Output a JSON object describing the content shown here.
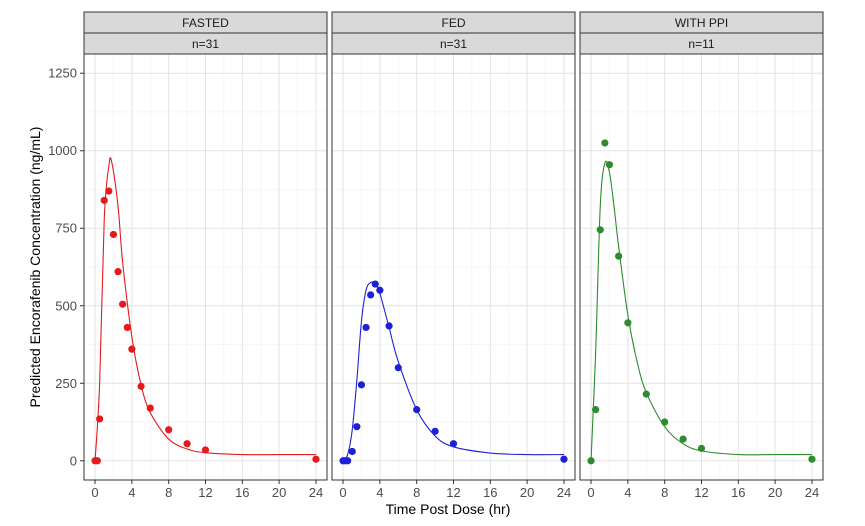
{
  "chart_data": {
    "type": "scatter",
    "xlabel": "Time Post Dose (hr)",
    "ylabel": "Predicted Encorafenib Concentration (ng/mL)",
    "xlim": [
      -1.2,
      25.2
    ],
    "ylim": [
      -62,
      1312
    ],
    "x_ticks": [
      0,
      4,
      8,
      12,
      16,
      20,
      24
    ],
    "y_ticks": [
      0,
      250,
      500,
      750,
      1000,
      1250
    ],
    "x_tick_labels": [
      "0",
      "4",
      "8",
      "12",
      "16",
      "20",
      "24"
    ],
    "y_tick_labels": [
      "0",
      "250",
      "500",
      "750",
      "1000",
      "1250"
    ],
    "grid": true,
    "panels": [
      {
        "strip_top": "FASTED",
        "strip_bottom": "n=31",
        "color": "#e41a1c",
        "observed": {
          "x": [
            0,
            0.25,
            0.5,
            1,
            1.5,
            2,
            2.5,
            3,
            3.5,
            4,
            5,
            6,
            8,
            10,
            12,
            24
          ],
          "y": [
            0,
            0,
            135,
            840,
            870,
            730,
            610,
            505,
            430,
            360,
            240,
            170,
            100,
            55,
            35,
            5
          ]
        },
        "fitted": {
          "x": [
            0,
            0.5,
            1,
            1.5,
            1.8,
            2.5,
            3,
            4,
            5,
            6,
            8,
            10,
            12,
            16,
            20,
            24
          ],
          "y": [
            0,
            250,
            780,
            950,
            965,
            820,
            640,
            400,
            245,
            155,
            70,
            38,
            26,
            20,
            20,
            20
          ]
        }
      },
      {
        "strip_top": "FED",
        "strip_bottom": "n=31",
        "color": "#1f1fd6",
        "observed": {
          "x": [
            0,
            0.25,
            0.5,
            1,
            1.5,
            2,
            2.5,
            3,
            3.5,
            4,
            5,
            6,
            8,
            10,
            12,
            24
          ],
          "y": [
            0,
            0,
            0,
            30,
            110,
            245,
            430,
            535,
            570,
            550,
            435,
            300,
            165,
            95,
            55,
            5
          ]
        },
        "fitted": {
          "x": [
            0,
            0.5,
            1,
            1.5,
            2,
            2.5,
            3,
            3.5,
            4,
            5,
            6,
            8,
            10,
            12,
            16,
            20,
            24
          ],
          "y": [
            0,
            20,
            100,
            260,
            450,
            550,
            575,
            570,
            540,
            430,
            320,
            165,
            80,
            45,
            25,
            20,
            20
          ]
        }
      },
      {
        "strip_top": "WITH PPI",
        "strip_bottom": "n=11",
        "color": "#2e8b2e",
        "observed": {
          "x": [
            0,
            0.5,
            1,
            1.5,
            2,
            3,
            4,
            6,
            8,
            10,
            12,
            24
          ],
          "y": [
            0,
            165,
            745,
            1025,
            955,
            660,
            445,
            215,
            125,
            70,
            40,
            5
          ]
        },
        "fitted": {
          "x": [
            0,
            0.5,
            1,
            1.5,
            2,
            2.5,
            3,
            4,
            5,
            6,
            8,
            10,
            12,
            16,
            20,
            24
          ],
          "y": [
            0,
            350,
            820,
            960,
            930,
            820,
            690,
            470,
            320,
            220,
            110,
            55,
            32,
            20,
            20,
            20
          ]
        }
      }
    ]
  }
}
